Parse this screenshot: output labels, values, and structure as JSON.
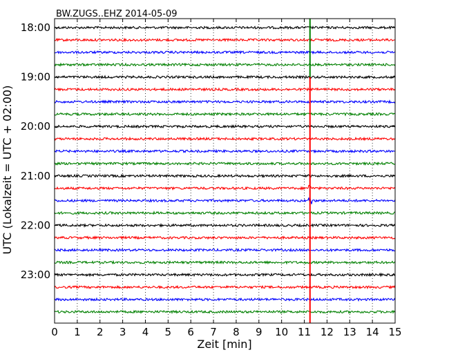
{
  "chart_data": {
    "type": "line",
    "title": "BW.ZUGS..EHZ 2014-05-09",
    "xlabel": "Zeit  [min]",
    "ylabel": "UTC (Lokalzeit = UTC + 02:00)",
    "xlim": [
      0,
      15
    ],
    "x_ticks": [
      "0",
      "1",
      "2",
      "3",
      "4",
      "5",
      "6",
      "7",
      "8",
      "9",
      "10",
      "11",
      "12",
      "13",
      "14",
      "15"
    ],
    "y_ticks": [
      "18:00",
      "19:00",
      "20:00",
      "21:00",
      "22:00",
      "23:00"
    ],
    "grid": "vertical dotted",
    "trace_interval_min": 15,
    "start_time": "18:00",
    "traces": [
      "18:00",
      "18:15",
      "18:30",
      "18:45",
      "19:00",
      "19:15",
      "19:30",
      "19:45",
      "20:00",
      "20:15",
      "20:30",
      "20:45",
      "21:00",
      "21:15",
      "21:30",
      "21:45",
      "22:00",
      "22:15",
      "22:30",
      "22:45",
      "23:00",
      "23:15",
      "23:30",
      "23:45"
    ],
    "trace_colors": [
      "#000000",
      "#ff0000",
      "#0000ff",
      "#008000"
    ],
    "event_marker": {
      "x": 11.25,
      "color_top": "#008000",
      "color_bottom": "#ff0000",
      "split_trace": "19:00"
    }
  }
}
